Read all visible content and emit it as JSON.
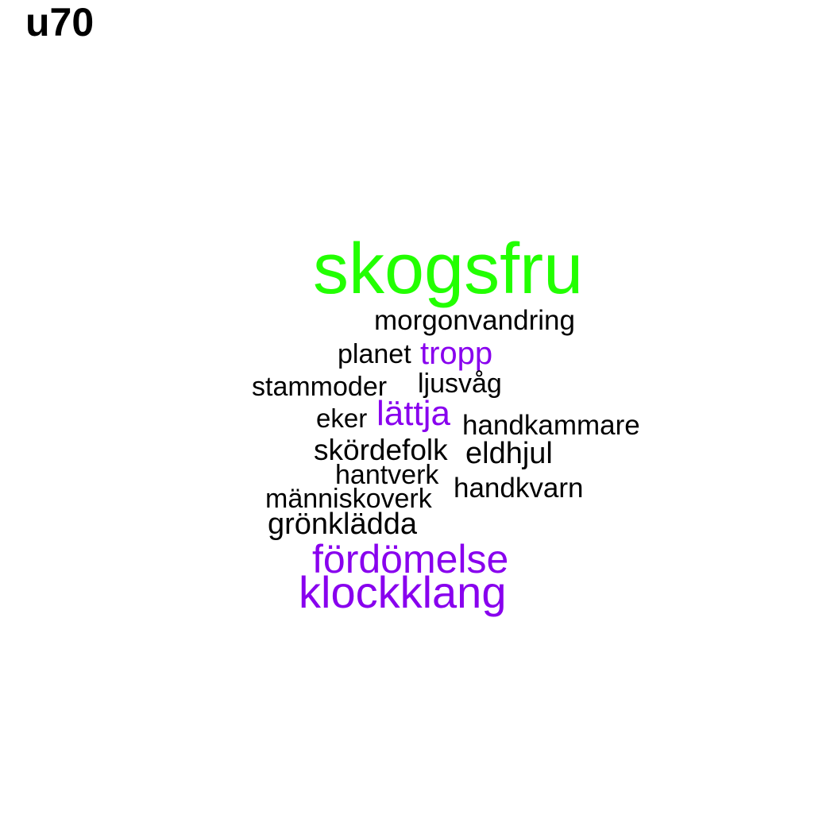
{
  "title": "u70",
  "colors": {
    "green": "#22ff00",
    "purple": "#8800ee",
    "black": "#000000"
  },
  "words": [
    {
      "id": "skogsfru",
      "text": "skogsfru",
      "color": "green"
    },
    {
      "id": "morgonvandring",
      "text": "morgonvandring",
      "color": "black"
    },
    {
      "id": "planet",
      "text": "planet",
      "color": "black"
    },
    {
      "id": "tropp",
      "text": "tropp",
      "color": "purple"
    },
    {
      "id": "stammoder",
      "text": "stammoder",
      "color": "black"
    },
    {
      "id": "ljusvag",
      "text": "ljusvåg",
      "color": "black"
    },
    {
      "id": "eker",
      "text": "eker",
      "color": "black"
    },
    {
      "id": "lattja",
      "text": "lättja",
      "color": "purple"
    },
    {
      "id": "handkammare",
      "text": "handkammare",
      "color": "black"
    },
    {
      "id": "skordefolk",
      "text": "skördefolk",
      "color": "black"
    },
    {
      "id": "eldhjul",
      "text": "eldhjul",
      "color": "black"
    },
    {
      "id": "hantverk",
      "text": "hantverk",
      "color": "black"
    },
    {
      "id": "handkvarn",
      "text": "handkvarn",
      "color": "black"
    },
    {
      "id": "manniskoverk",
      "text": "människoverk",
      "color": "black"
    },
    {
      "id": "gronkladda",
      "text": "grönklädda",
      "color": "black"
    },
    {
      "id": "fordomelse",
      "text": "fördömelse",
      "color": "purple"
    },
    {
      "id": "klockklang",
      "text": "klockklang",
      "color": "purple"
    }
  ]
}
